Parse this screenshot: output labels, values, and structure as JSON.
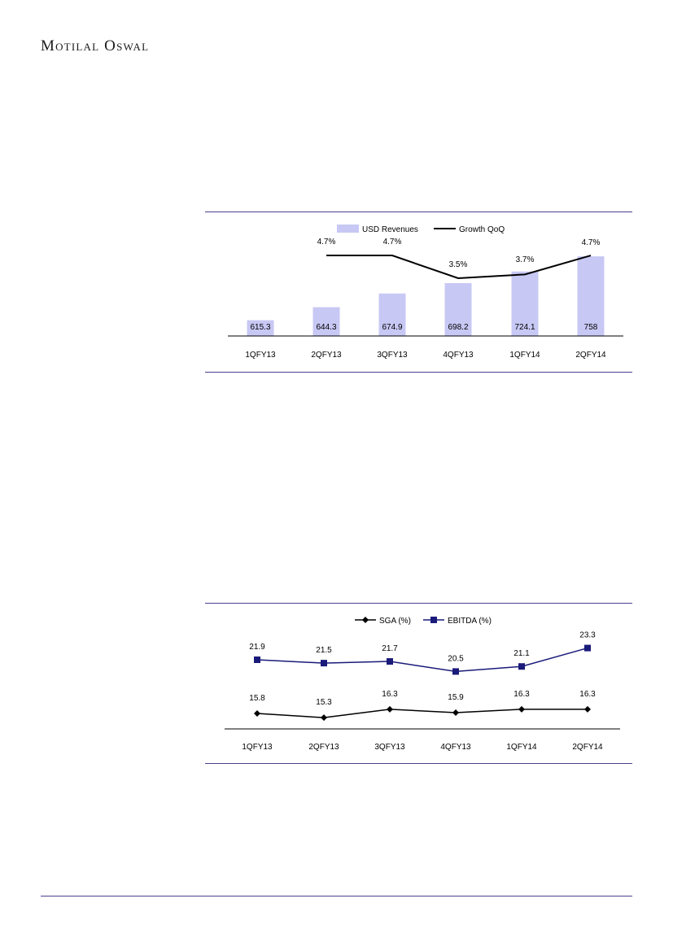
{
  "brand": {
    "name": "Motilal Oswal"
  },
  "colors": {
    "rule": "#4b3f8f",
    "bar": "#c8c8f5",
    "growth_line": "#000000",
    "sga_line": "#000000",
    "ebitda_line": "#1a1a7a"
  },
  "chart_data": [
    {
      "type": "bar",
      "categories": [
        "1QFY13",
        "2QFY13",
        "3QFY13",
        "4QFY13",
        "1QFY14",
        "2QFY14"
      ],
      "series": [
        {
          "name": "USD Revenues",
          "type": "bar",
          "values": [
            615.3,
            644.3,
            674.9,
            698.2,
            724.1,
            758
          ],
          "value_labels": [
            "615.3",
            "644.3",
            "674.9",
            "698.2",
            "724.1",
            "758"
          ]
        },
        {
          "name": "Growth QoQ",
          "type": "line",
          "values": [
            null,
            4.7,
            4.7,
            3.5,
            3.7,
            4.7
          ],
          "value_labels": [
            "",
            "4.7%",
            "4.7%",
            "3.5%",
            "3.7%",
            "4.7%"
          ],
          "unit": "%"
        }
      ],
      "legend": "top-center",
      "grid": false
    },
    {
      "type": "line",
      "categories": [
        "1QFY13",
        "2QFY13",
        "3QFY13",
        "4QFY13",
        "1QFY14",
        "2QFY14"
      ],
      "series": [
        {
          "name": "SGA (%)",
          "marker": "diamond",
          "values": [
            15.8,
            15.3,
            16.3,
            15.9,
            16.3,
            16.3
          ],
          "value_labels": [
            "15.8",
            "15.3",
            "16.3",
            "15.9",
            "16.3",
            "16.3"
          ]
        },
        {
          "name": "EBITDA (%)",
          "marker": "square",
          "values": [
            21.9,
            21.5,
            21.7,
            20.5,
            21.1,
            23.3
          ],
          "value_labels": [
            "21.9",
            "21.5",
            "21.7",
            "20.5",
            "21.1",
            "23.3"
          ]
        }
      ],
      "legend": "top-center",
      "grid": false
    }
  ]
}
